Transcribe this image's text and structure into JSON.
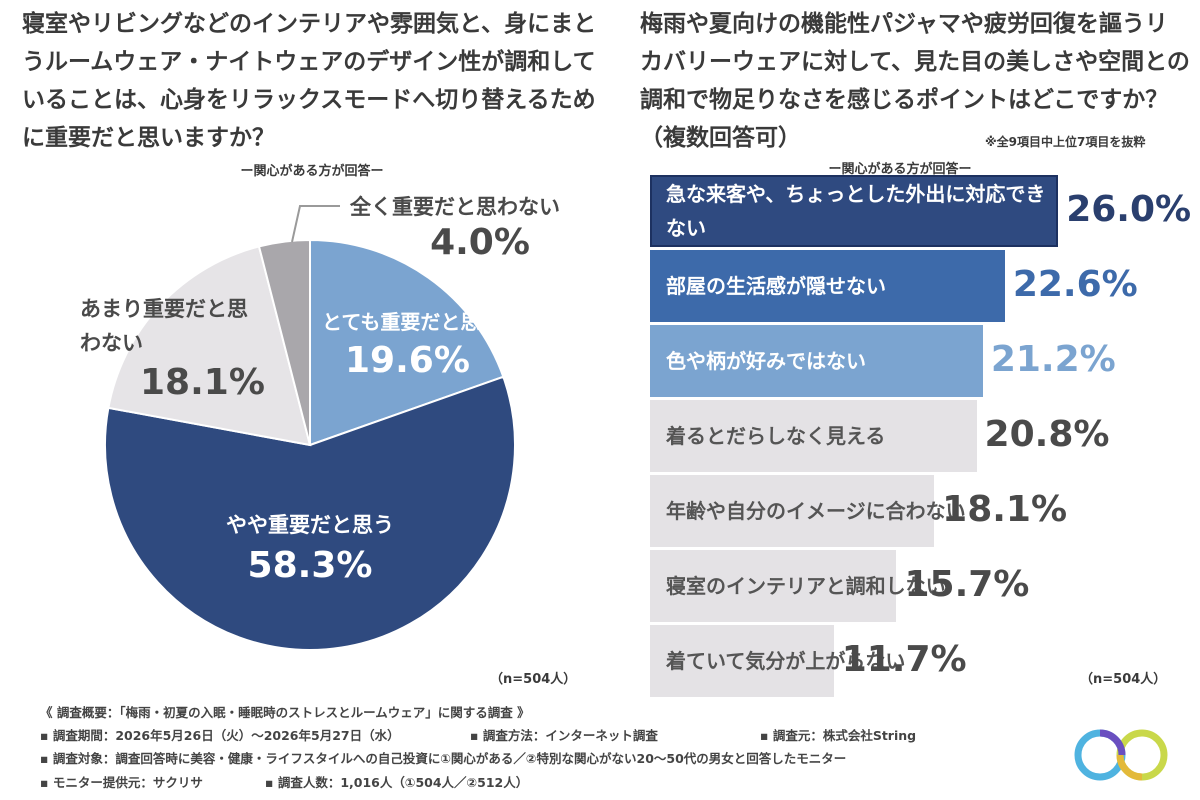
{
  "chart_data": [
    {
      "type": "pie",
      "title": "寝室やリビングなどのインテリアや雰囲気と、身にまとうルームウェア・ナイトウェアのデザイン性が調和していることは、心身をリラックスモードへ切り替えるために重要だと思いますか？",
      "subtitle": "ー関心がある方が回答ー",
      "categories": [
        "とても重要だと思う",
        "やや重要だと思う",
        "あまり重要だと思わない",
        "全く重要だと思わない"
      ],
      "values": [
        19.6,
        58.3,
        18.1,
        4.0
      ],
      "value_labels": [
        "19.6%",
        "58.3%",
        "18.1%",
        "4.0%"
      ],
      "colors": [
        "#7ba4d0",
        "#2f4a7f",
        "#e6e4e7",
        "#a9a7ab"
      ],
      "n_label": "（n=504人）"
    },
    {
      "type": "bar",
      "orientation": "horizontal",
      "title": "梅雨や夏向けの機能性パジャマや疲労回復を謳うリカバリーウェアに対して、見た目の美しさや空間との調和で物足りなさを感じるポイントはどこですか？（複数回答可）",
      "subtitle": "ー関心がある方が回答ー",
      "note": "※全9項目中上位7項目を抜粋",
      "categories": [
        "急な来客や、ちょっとした外出に対応できない",
        "部屋の生活感が隠せない",
        "色や柄が好みではない",
        "着るとだらしなく見える",
        "年齢や自分のイメージに合わない",
        "寝室のインテリアと調和しない",
        "着ていて気分が上がらない"
      ],
      "values": [
        26.0,
        22.6,
        21.2,
        20.8,
        18.1,
        15.7,
        11.7
      ],
      "value_labels": [
        "26.0%",
        "22.6%",
        "21.2%",
        "20.8%",
        "18.1%",
        "15.7%",
        "11.7%"
      ],
      "colors": [
        "#2f4a80",
        "#3d6aaa",
        "#7ba4d0",
        "#e4e2e5",
        "#e4e2e5",
        "#e4e2e5",
        "#e4e2e5"
      ],
      "value_label_colors": [
        "#2a3f6e",
        "#3d6aaa",
        "#7ba4d0",
        "#4a4a4a",
        "#4a4a4a",
        "#4a4a4a",
        "#4a4a4a"
      ],
      "n_label": "（n=504人）"
    }
  ],
  "footer": [
    "《 調査概要：「梅雨・初夏の入眠・睡眠時のストレスとルームウェア」に関する調査 》",
    "▪ 調査期間：2026年5月26日（火）〜2026年5月27日（水）",
    "▪ 調査方法：インターネット調査",
    "▪ 調査元：株式会社String",
    "▪ 調査対象：調査回答時に美容・健康・ライフスタイルへの自己投資に①関心がある／②特別な関心がない20〜50代の男女と回答したモニター",
    "▪ モニター提供元：サクリサ",
    "▪ 調査人数：1,016人（①504人／②512人）"
  ]
}
